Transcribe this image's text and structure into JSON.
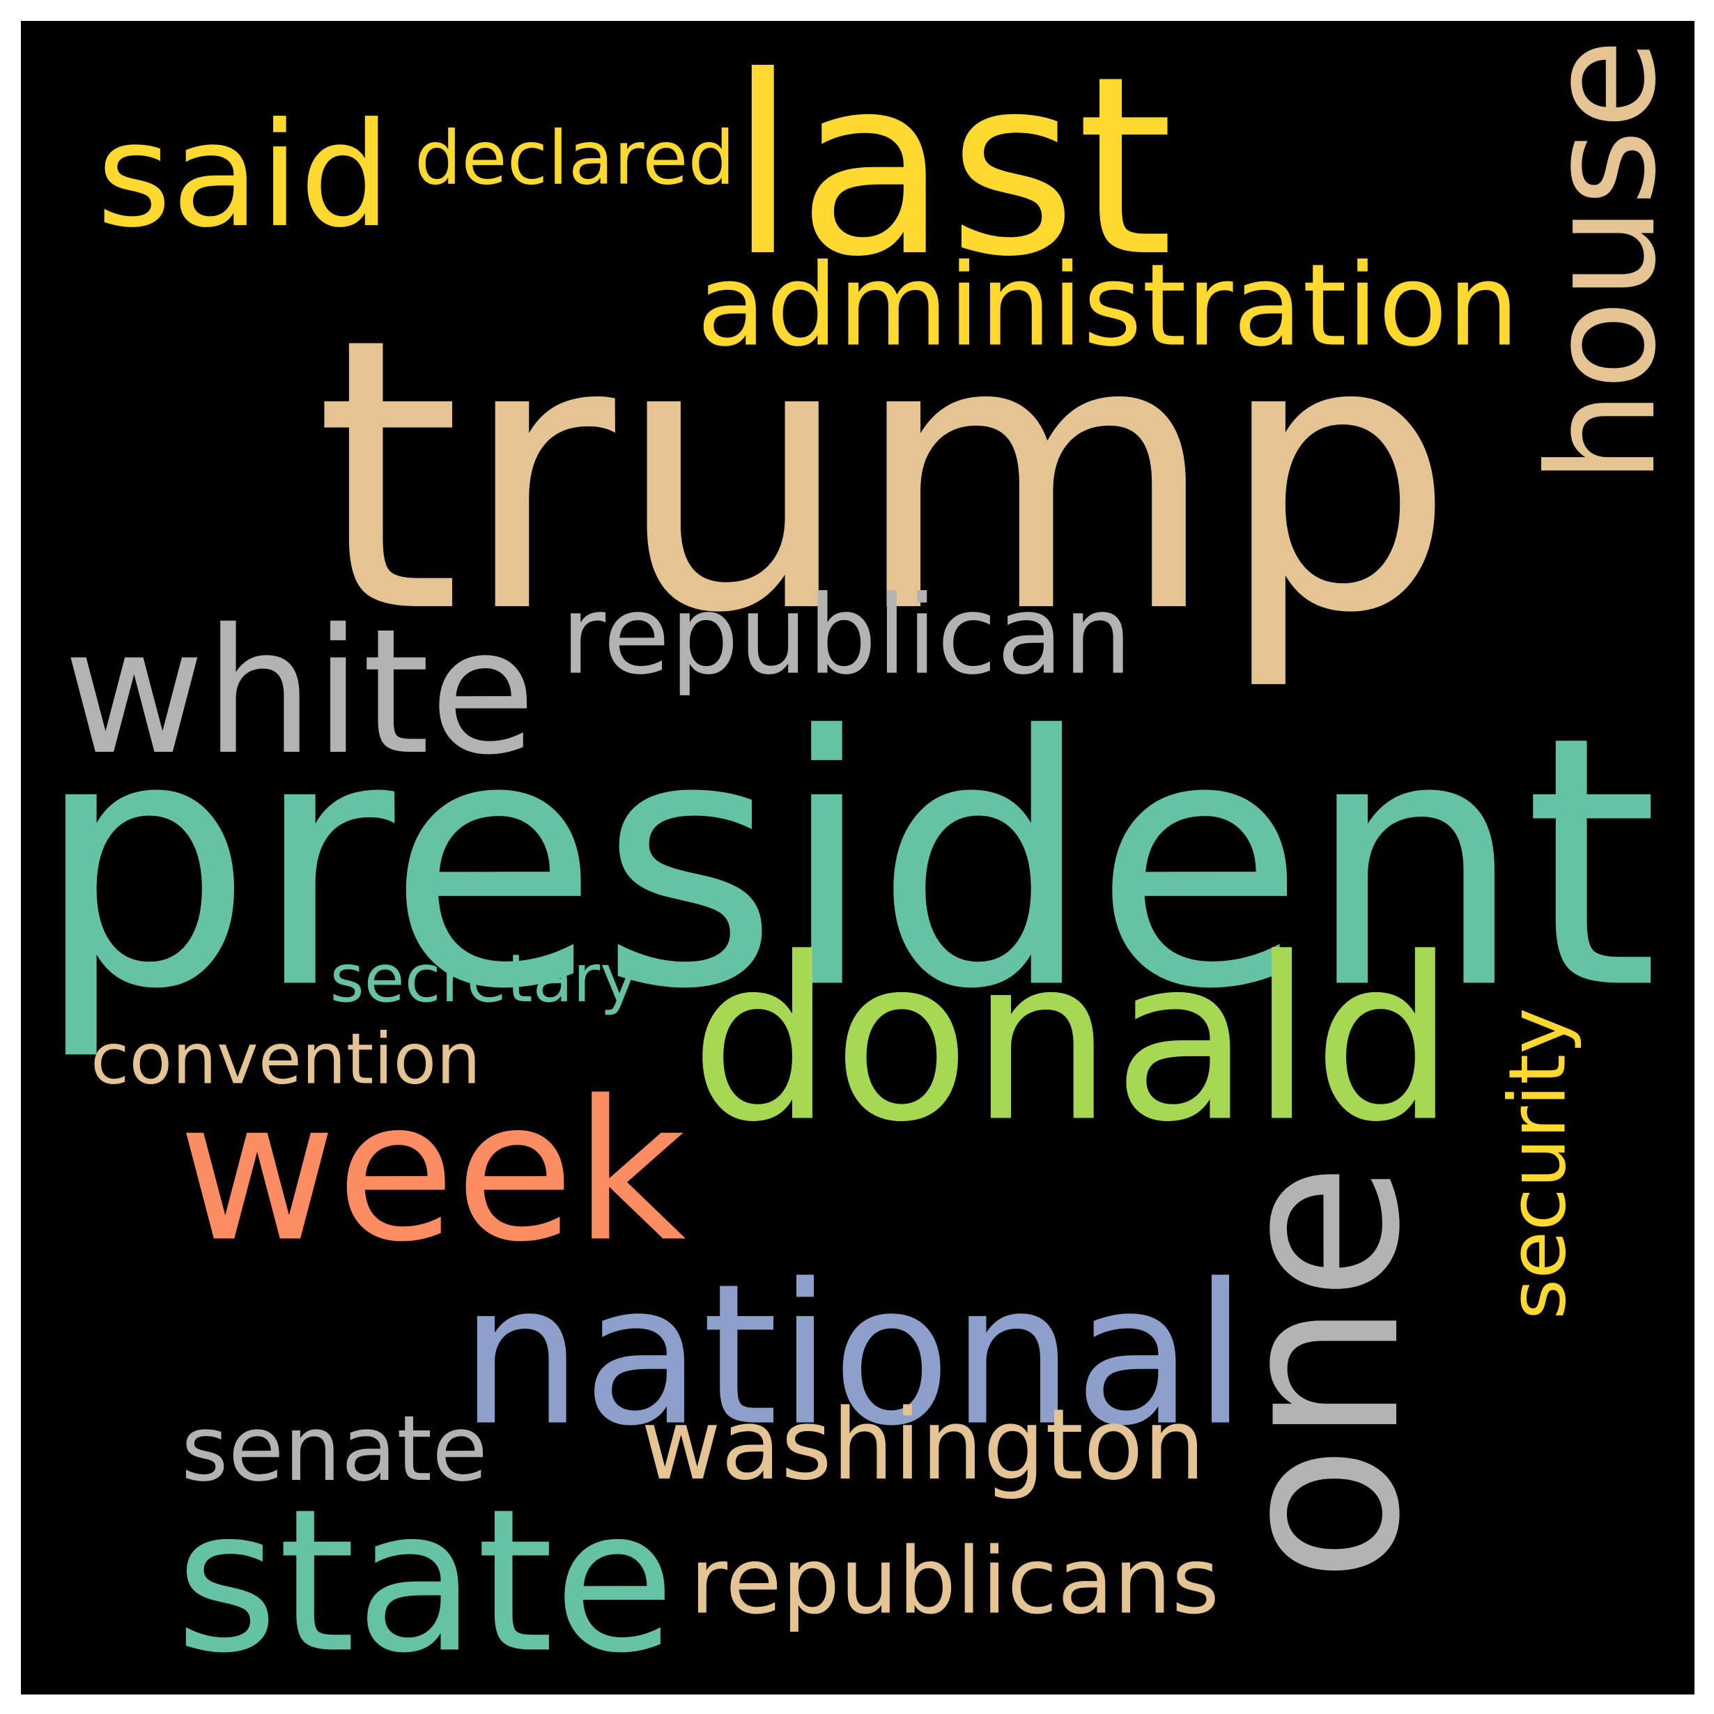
{
  "background_color": "#000000",
  "words": [
    {
      "text": "trump",
      "color": "#e5c494"
    },
    {
      "text": "president",
      "color": "#66c2a5"
    },
    {
      "text": "last",
      "color": "#ffd92f"
    },
    {
      "text": "one",
      "color": "#b3b3b3"
    },
    {
      "text": "donald",
      "color": "#a6d854"
    },
    {
      "text": "week",
      "color": "#fc8d62"
    },
    {
      "text": "national",
      "color": "#8da0cb"
    },
    {
      "text": "state",
      "color": "#66c2a5"
    },
    {
      "text": "white",
      "color": "#b3b3b3"
    },
    {
      "text": "house",
      "color": "#e5c494"
    },
    {
      "text": "said",
      "color": "#ffd92f"
    },
    {
      "text": "administration",
      "color": "#ffd92f"
    },
    {
      "text": "republican",
      "color": "#b3b3b3"
    },
    {
      "text": "washington",
      "color": "#e5c494"
    },
    {
      "text": "republicans",
      "color": "#e5c494"
    },
    {
      "text": "senate",
      "color": "#b3b3b3"
    },
    {
      "text": "declared",
      "color": "#ffd92f"
    },
    {
      "text": "convention",
      "color": "#e5c494"
    },
    {
      "text": "security",
      "color": "#ffd92f"
    },
    {
      "text": "secretary",
      "color": "#66c2a5"
    }
  ]
}
